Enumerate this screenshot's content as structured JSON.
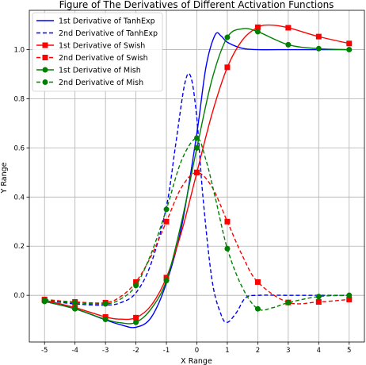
{
  "chart_data": {
    "type": "line",
    "title": "Figure of The Derivatives of Different Activation Functions",
    "xlabel": "X Range",
    "ylabel": "Y Range",
    "xlim": [
      -5.5,
      5.5
    ],
    "ylim": [
      -0.19,
      1.16
    ],
    "xticks": [
      -5,
      -4,
      -3,
      -2,
      -1,
      0,
      1,
      2,
      3,
      4,
      5
    ],
    "yticks": [
      0.0,
      0.2,
      0.4,
      0.6,
      0.8,
      1.0
    ],
    "grid": true,
    "legend_position": "top-left",
    "series": [
      {
        "name": "1st Derivative of TanhExp",
        "color": "#0000ff",
        "linestyle": "solid",
        "marker": "none",
        "x": [
          -5,
          -4,
          -3,
          -2.5,
          -2,
          -1.5,
          -1,
          -0.5,
          0,
          0.3,
          0.6,
          0.8,
          1,
          1.5,
          2,
          3,
          4,
          5
        ],
        "y": [
          -0.025,
          -0.055,
          -0.1,
          -0.12,
          -0.13,
          -0.09,
          0.05,
          0.28,
          0.66,
          0.93,
          1.06,
          1.055,
          1.03,
          1.005,
          1.0,
          1.0,
          1.0,
          1.0
        ]
      },
      {
        "name": "2nd Derivative of TanhExp",
        "color": "#0000ff",
        "linestyle": "dashed",
        "marker": "none",
        "x": [
          -5,
          -4,
          -3,
          -2.5,
          -2,
          -1.5,
          -1,
          -0.7,
          -0.4,
          -0.2,
          0,
          0.2,
          0.5,
          0.8,
          1,
          1.3,
          1.6,
          2,
          3,
          4,
          5
        ],
        "y": [
          -0.02,
          -0.035,
          -0.04,
          -0.03,
          0.01,
          0.13,
          0.36,
          0.61,
          0.86,
          0.89,
          0.72,
          0.4,
          0.06,
          -0.08,
          -0.11,
          -0.07,
          -0.01,
          0.0,
          0.0,
          0.0,
          0.0
        ]
      },
      {
        "name": "1st Derivative of Swish",
        "color": "#ff0000",
        "linestyle": "solid",
        "marker": "square",
        "x": [
          -5,
          -4,
          -3,
          -2.5,
          -2,
          -1.5,
          -1,
          -0.5,
          0,
          0.5,
          1,
          1.5,
          2,
          2.4,
          3,
          4,
          5
        ],
        "y": [
          -0.02,
          -0.05,
          -0.088,
          -0.097,
          -0.091,
          -0.041,
          0.072,
          0.26,
          0.5,
          0.74,
          0.928,
          1.04,
          1.091,
          1.1,
          1.089,
          1.053,
          1.025
        ]
      },
      {
        "name": "2nd Derivative of Swish",
        "color": "#ff0000",
        "linestyle": "dashed",
        "marker": "square",
        "x": [
          -5,
          -4,
          -3,
          -2.5,
          -2,
          -1.5,
          -1,
          -0.5,
          0,
          0.5,
          1,
          1.5,
          2,
          3,
          4,
          5
        ],
        "y": [
          -0.017,
          -0.027,
          -0.03,
          -0.005,
          0.054,
          0.16,
          0.3,
          0.44,
          0.5,
          0.44,
          0.3,
          0.16,
          0.054,
          -0.029,
          -0.027,
          -0.017
        ]
      },
      {
        "name": "1st Derivative of Mish",
        "color": "#008000",
        "linestyle": "solid",
        "marker": "circle",
        "x": [
          -5,
          -4,
          -3,
          -2.5,
          -2,
          -1.5,
          -1,
          -0.5,
          0,
          0.5,
          1,
          1.5,
          2,
          3,
          4,
          5
        ],
        "y": [
          -0.025,
          -0.055,
          -0.098,
          -0.112,
          -0.11,
          -0.055,
          0.06,
          0.3,
          0.6,
          0.88,
          1.05,
          1.085,
          1.073,
          1.02,
          1.004,
          1.0
        ]
      },
      {
        "name": "2nd Derivative of Mish",
        "color": "#008000",
        "linestyle": "dashed",
        "marker": "circle",
        "x": [
          -5,
          -4,
          -3,
          -2.5,
          -2,
          -1.5,
          -1,
          -0.5,
          0,
          0.3,
          0.6,
          1,
          1.5,
          2,
          2.5,
          3,
          4,
          5
        ],
        "y": [
          -0.02,
          -0.03,
          -0.035,
          -0.015,
          0.04,
          0.17,
          0.35,
          0.55,
          0.64,
          0.55,
          0.4,
          0.19,
          0.03,
          -0.055,
          -0.05,
          -0.03,
          -0.005,
          0.0
        ]
      }
    ]
  }
}
